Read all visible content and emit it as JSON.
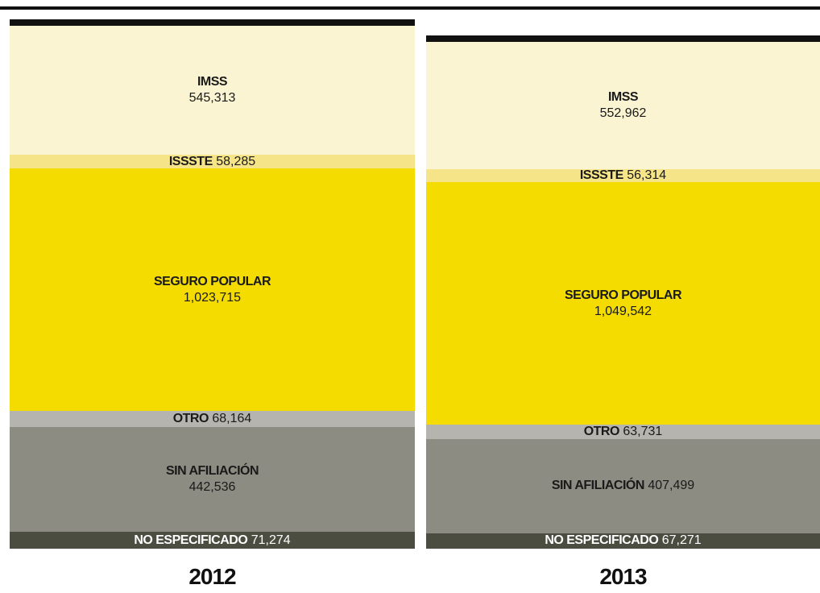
{
  "chart_data": {
    "type": "stacked-bar",
    "categories": [
      "IMSS",
      "ISSSTE",
      "SEGURO POPULAR",
      "OTRO",
      "SIN AFILIACIÓN",
      "NO ESPECIFICADO"
    ],
    "colors": {
      "IMSS": "#fbf4d2",
      "ISSSTE": "#f6e489",
      "SEGURO POPULAR": "#f4dc00",
      "OTRO": "#b5b4ae",
      "SIN AFILIACIÓN": "#8c8c83",
      "NO ESPECIFICADO": "#4a4d40"
    },
    "series": [
      {
        "name": "2012",
        "labels": [
          "IMSS",
          "ISSSTE",
          "SEGURO POPULAR",
          "OTRO",
          "SIN AFILIACIÓN",
          "NO ESPECIFICADO"
        ],
        "display": [
          "545,313",
          "58,285",
          "1,023,715",
          "68,164",
          "442,536",
          "71,274"
        ],
        "values": [
          545313,
          58285,
          1023715,
          68164,
          442536,
          71274
        ]
      },
      {
        "name": "2013",
        "labels": [
          "IMSS",
          "ISSSTE",
          "SEGURO POPULAR",
          "OTRO",
          "SIN AFILIACIÓN",
          "NO ESPECIFICADO"
        ],
        "display": [
          "552,962",
          "56,314",
          "1,049,542",
          "63,731",
          "407,499",
          "67,271"
        ],
        "values": [
          552962,
          56314,
          1049542,
          63731,
          407499,
          67271
        ]
      }
    ]
  }
}
